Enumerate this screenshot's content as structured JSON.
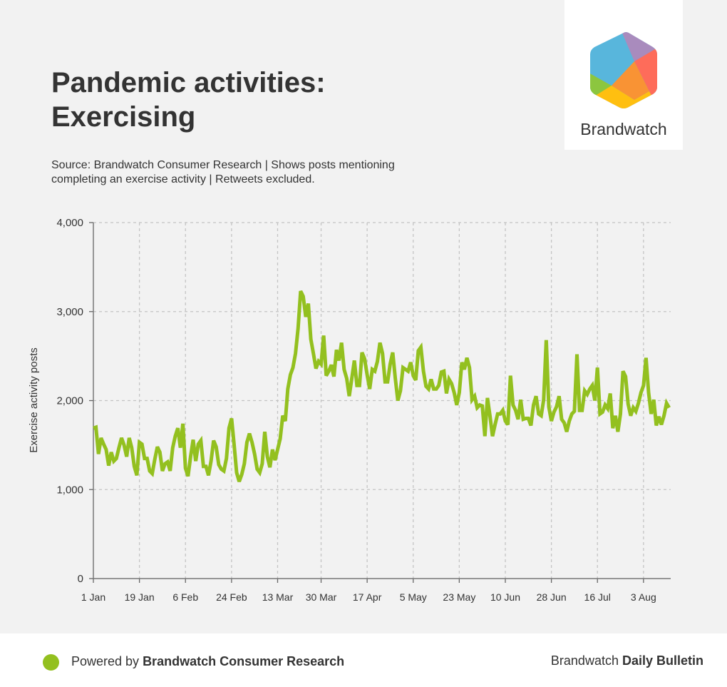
{
  "header": {
    "title_line1": "Pandemic activities:",
    "title_line2": "Exercising",
    "source_line1": "Source: Brandwatch Consumer Research | Shows posts mentioning",
    "source_line2": "completing an exercise activity | Retweets excluded."
  },
  "logo": {
    "text": "Brandwatch"
  },
  "footer": {
    "powered_prefix": "Powered by ",
    "powered_bold": "Brandwatch Consumer Research",
    "bulletin_prefix": "Brandwatch ",
    "bulletin_bold": "Daily Bulletin",
    "dot_color": "#93c01f"
  },
  "chart_data": {
    "type": "line",
    "title": "Pandemic activities: Exercising",
    "xlabel": "",
    "ylabel": "Exercise activity posts",
    "ylim": [
      0,
      4000
    ],
    "yticks": [
      0,
      1000,
      2000,
      3000,
      4000
    ],
    "ytick_labels": [
      "0",
      "1,000",
      "2,000",
      "3,000",
      "4,000"
    ],
    "x_start": "1 Jan",
    "x_interval": "1 day",
    "xtick_days": [
      0,
      18,
      36,
      54,
      72,
      89,
      107,
      125,
      143,
      161,
      179,
      197,
      215
    ],
    "xtick_labels": [
      "1 Jan",
      "19 Jan",
      "6 Feb",
      "24 Feb",
      "13 Mar",
      "30 Mar",
      "17 Apr",
      "5 May",
      "23 May",
      "10 Jun",
      "28 Jun",
      "16 Jul",
      "3 Aug"
    ],
    "grid": true,
    "color": "#93c01f",
    "series": [
      {
        "name": "Exercise activity posts",
        "values": [
          1690,
          1700,
          1400,
          1580,
          1510,
          1450,
          1270,
          1420,
          1320,
          1350,
          1470,
          1580,
          1500,
          1370,
          1580,
          1470,
          1260,
          1160,
          1530,
          1510,
          1350,
          1350,
          1210,
          1180,
          1340,
          1480,
          1420,
          1210,
          1290,
          1310,
          1210,
          1470,
          1600,
          1690,
          1470,
          1740,
          1240,
          1150,
          1370,
          1560,
          1320,
          1510,
          1550,
          1260,
          1260,
          1160,
          1320,
          1550,
          1480,
          1280,
          1230,
          1210,
          1350,
          1690,
          1800,
          1510,
          1190,
          1090,
          1170,
          1290,
          1530,
          1630,
          1530,
          1400,
          1230,
          1190,
          1290,
          1650,
          1370,
          1250,
          1450,
          1330,
          1450,
          1570,
          1830,
          1770,
          2130,
          2290,
          2370,
          2530,
          2810,
          3230,
          3170,
          2940,
          3090,
          2690,
          2530,
          2360,
          2440,
          2410,
          2730,
          2280,
          2330,
          2400,
          2270,
          2570,
          2450,
          2650,
          2350,
          2250,
          2050,
          2250,
          2450,
          2170,
          2170,
          2540,
          2470,
          2290,
          2130,
          2350,
          2330,
          2440,
          2650,
          2530,
          2210,
          2210,
          2410,
          2540,
          2250,
          2000,
          2110,
          2370,
          2350,
          2330,
          2430,
          2280,
          2230,
          2560,
          2600,
          2330,
          2160,
          2130,
          2240,
          2130,
          2130,
          2170,
          2320,
          2330,
          2080,
          2240,
          2190,
          2090,
          1950,
          2090,
          2430,
          2350,
          2480,
          2370,
          2010,
          2050,
          1920,
          1950,
          1940,
          1600,
          2030,
          1830,
          1600,
          1730,
          1850,
          1850,
          1890,
          1770,
          1730,
          2280,
          1950,
          1890,
          1790,
          2010,
          1790,
          1800,
          1800,
          1720,
          1950,
          2050,
          1850,
          1830,
          2010,
          2680,
          1930,
          1770,
          1870,
          1930,
          2050,
          1790,
          1750,
          1650,
          1770,
          1850,
          1880,
          2520,
          1890,
          1890,
          2110,
          2070,
          2130,
          2170,
          2000,
          2370,
          1850,
          1870,
          1950,
          1910,
          2080,
          1690,
          1830,
          1650,
          1850,
          2330,
          2270,
          1960,
          1830,
          1920,
          1880,
          1970,
          2090,
          2170,
          2480,
          2090,
          1850,
          2010,
          1720,
          1820,
          1730,
          1830,
          1970,
          1920
        ]
      }
    ]
  }
}
